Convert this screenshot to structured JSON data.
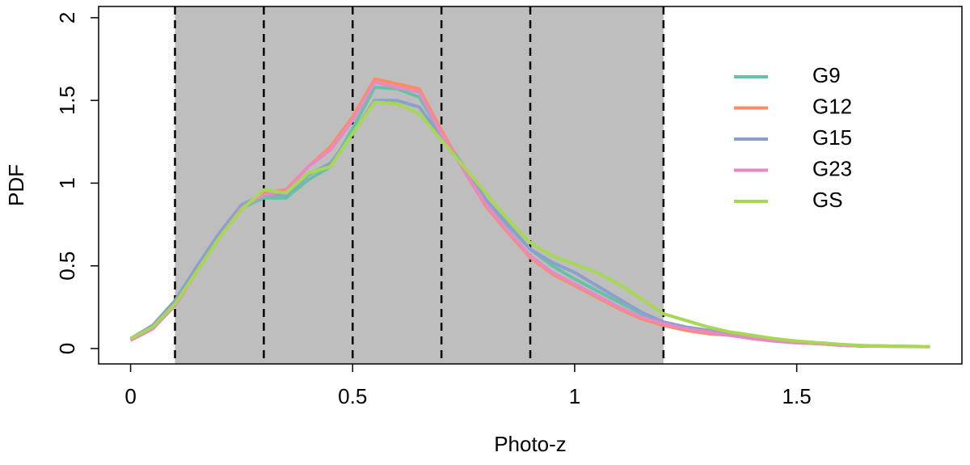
{
  "chart_data": {
    "type": "line",
    "xlabel": "Photo-z",
    "ylabel": "PDF",
    "x": [
      0,
      0.05,
      0.1,
      0.15,
      0.2,
      0.25,
      0.3,
      0.35,
      0.4,
      0.45,
      0.5,
      0.55,
      0.6,
      0.65,
      0.7,
      0.75,
      0.8,
      0.85,
      0.9,
      0.95,
      1.0,
      1.05,
      1.1,
      1.15,
      1.2,
      1.25,
      1.3,
      1.35,
      1.4,
      1.45,
      1.5,
      1.55,
      1.6,
      1.65,
      1.7,
      1.75,
      1.8
    ],
    "series": [
      {
        "name": "G9",
        "color": "#66c2a5",
        "values": [
          0.06,
          0.14,
          0.29,
          0.49,
          0.69,
          0.85,
          0.91,
          0.91,
          1.02,
          1.1,
          1.33,
          1.58,
          1.57,
          1.52,
          1.3,
          1.1,
          0.9,
          0.74,
          0.6,
          0.5,
          0.42,
          0.35,
          0.28,
          0.21,
          0.16,
          0.13,
          0.11,
          0.09,
          0.07,
          0.05,
          0.04,
          0.03,
          0.02,
          0.015,
          0.015,
          0.013,
          0.012
        ]
      },
      {
        "name": "G12",
        "color": "#fc8d62",
        "values": [
          0.05,
          0.12,
          0.27,
          0.47,
          0.68,
          0.86,
          0.94,
          0.96,
          1.1,
          1.22,
          1.4,
          1.63,
          1.6,
          1.57,
          1.32,
          1.08,
          0.86,
          0.7,
          0.55,
          0.45,
          0.38,
          0.31,
          0.24,
          0.18,
          0.14,
          0.11,
          0.09,
          0.08,
          0.06,
          0.045,
          0.035,
          0.03,
          0.02,
          0.015,
          0.014,
          0.012,
          0.011
        ]
      },
      {
        "name": "G15",
        "color": "#8da0cb",
        "values": [
          0.06,
          0.14,
          0.29,
          0.5,
          0.7,
          0.87,
          0.93,
          0.93,
          1.05,
          1.12,
          1.3,
          1.5,
          1.5,
          1.46,
          1.28,
          1.1,
          0.9,
          0.75,
          0.6,
          0.52,
          0.46,
          0.38,
          0.3,
          0.22,
          0.16,
          0.13,
          0.11,
          0.09,
          0.07,
          0.05,
          0.04,
          0.03,
          0.02,
          0.015,
          0.015,
          0.013,
          0.012
        ]
      },
      {
        "name": "G23",
        "color": "#e78ac3",
        "values": [
          0.05,
          0.12,
          0.26,
          0.47,
          0.67,
          0.85,
          0.93,
          0.95,
          1.1,
          1.2,
          1.38,
          1.61,
          1.58,
          1.55,
          1.3,
          1.08,
          0.87,
          0.71,
          0.56,
          0.46,
          0.39,
          0.32,
          0.25,
          0.19,
          0.15,
          0.12,
          0.1,
          0.08,
          0.06,
          0.045,
          0.035,
          0.03,
          0.02,
          0.015,
          0.014,
          0.012,
          0.011
        ]
      },
      {
        "name": "GS",
        "color": "#a6d854",
        "values": [
          0.06,
          0.13,
          0.27,
          0.47,
          0.67,
          0.84,
          0.96,
          0.94,
          1.06,
          1.1,
          1.3,
          1.49,
          1.48,
          1.42,
          1.26,
          1.1,
          0.94,
          0.78,
          0.64,
          0.56,
          0.51,
          0.46,
          0.39,
          0.3,
          0.21,
          0.17,
          0.13,
          0.1,
          0.08,
          0.06,
          0.045,
          0.035,
          0.025,
          0.018,
          0.015,
          0.013,
          0.012
        ]
      }
    ],
    "xlim": [
      -0.072,
      1.872
    ],
    "ylim": [
      -0.093,
      2.068
    ],
    "xticks": [
      0,
      0.5,
      1,
      1.5
    ],
    "yticks": [
      0,
      0.5,
      1,
      1.5,
      2
    ],
    "shaded_region": [
      0.1,
      1.2
    ],
    "vlines": [
      0.1,
      0.3,
      0.5,
      0.7,
      0.9,
      1.2
    ]
  }
}
